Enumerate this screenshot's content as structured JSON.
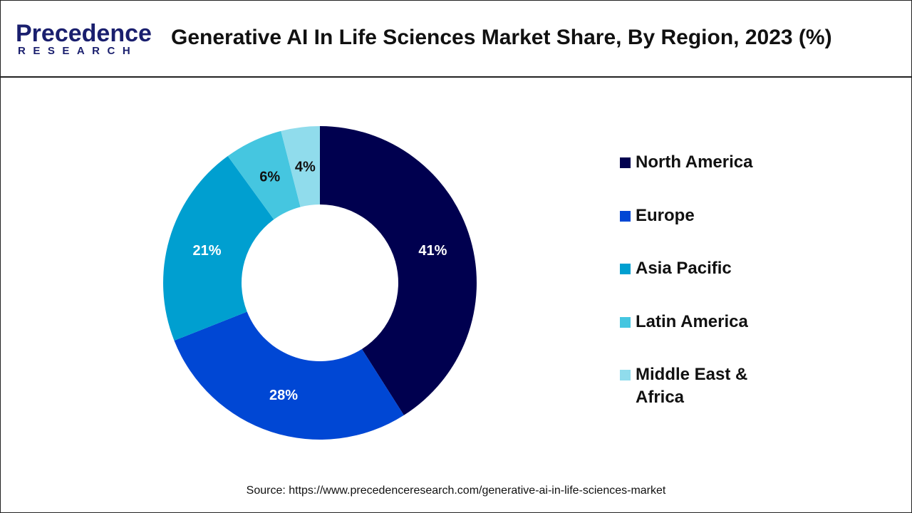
{
  "header": {
    "logo_main": "Precedence",
    "logo_sub": "RESEARCH",
    "title": "Generative AI In Life Sciences Market Share, By Region, 2023 (%)"
  },
  "chart_data": {
    "type": "pie",
    "donut": true,
    "title": "Generative AI In Life Sciences Market Share, By Region, 2023 (%)",
    "categories": [
      "North America",
      "Europe",
      "Asia Pacific",
      "Latin America",
      "Middle East & Africa"
    ],
    "values": [
      41,
      28,
      21,
      6,
      4
    ],
    "labels": [
      "41%",
      "28%",
      "21%",
      "6%",
      "4%"
    ],
    "colors": [
      "#00004f",
      "#0047d4",
      "#009fd0",
      "#45c6e0",
      "#90dcec"
    ],
    "label_colors": [
      "#ffffff",
      "#ffffff",
      "#ffffff",
      "#111111",
      "#111111"
    ],
    "legend_position": "right"
  },
  "source": "Source: https://www.precedenceresearch.com/generative-ai-in-life-sciences-market"
}
